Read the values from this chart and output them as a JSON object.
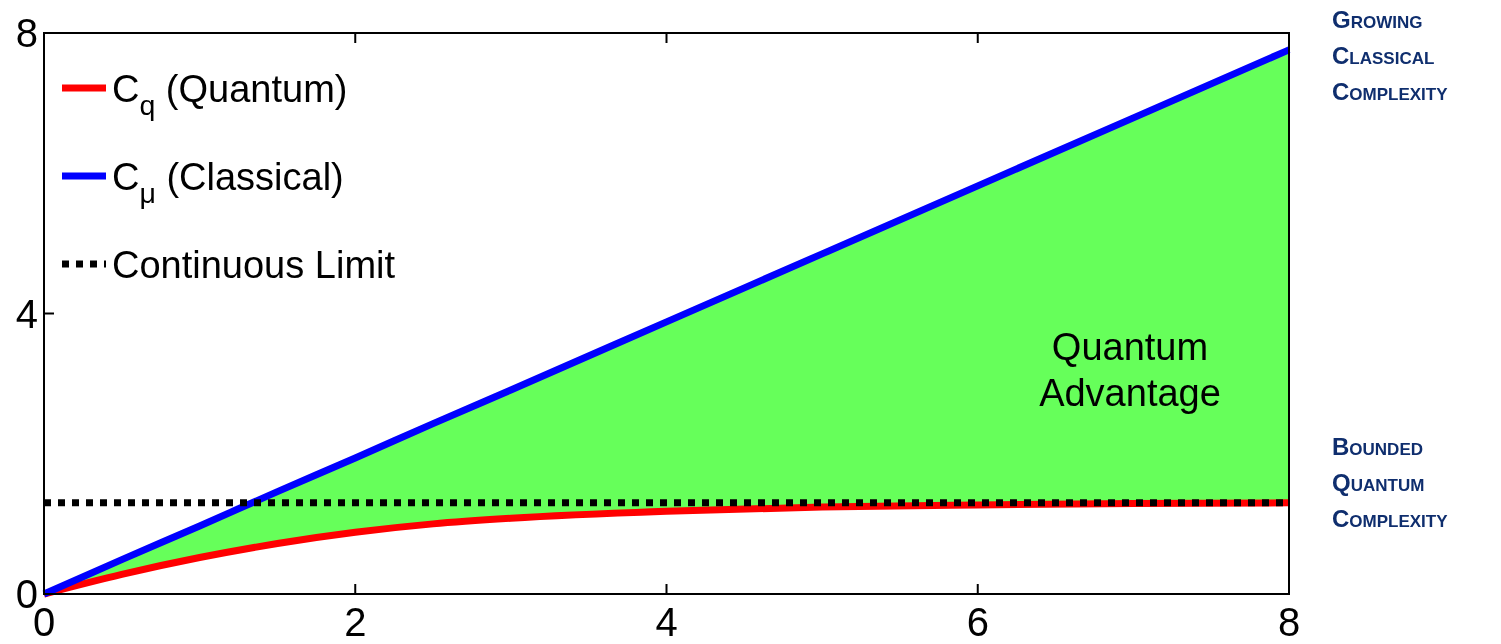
{
  "chart_data": {
    "type": "line",
    "x": [
      0,
      0.5,
      1,
      1.5,
      2,
      2.5,
      3,
      4,
      5,
      6,
      7,
      8
    ],
    "series": [
      {
        "name": "C$_{q}$ (Quantum)",
        "color": "#ff0000",
        "values": [
          0,
          0.28,
          0.52,
          0.72,
          0.88,
          1.0,
          1.08,
          1.18,
          1.24,
          1.27,
          1.29,
          1.3
        ]
      },
      {
        "name": "C$_{μ}$ (Classical)",
        "color": "#0000ff",
        "values": [
          0,
          0.49,
          0.97,
          1.46,
          1.94,
          2.43,
          2.91,
          3.88,
          4.85,
          5.82,
          6.79,
          7.76
        ],
        "lower": [
          0,
          0.28,
          0.52,
          0.72,
          0.88,
          1.0,
          1.08,
          1.18,
          1.24,
          1.27,
          1.29,
          1.3
        ],
        "upper": [
          0,
          0.49,
          0.97,
          1.46,
          1.94,
          2.43,
          2.91,
          3.88,
          4.85,
          5.82,
          6.79,
          7.76
        ]
      },
      {
        "name": "Continuous Limit",
        "color": "#000000",
        "line_style": "dotted",
        "values": [
          1.3,
          1.3,
          1.3,
          1.3,
          1.3,
          1.3,
          1.3,
          1.3,
          1.3,
          1.3,
          1.3,
          1.3
        ]
      }
    ],
    "xlim": [
      0,
      8
    ],
    "ylim": [
      0,
      8
    ],
    "xticks": [
      0,
      2,
      4,
      6,
      8
    ],
    "yticks": [
      0,
      4,
      8
    ],
    "legend": "top left",
    "marker": "none",
    "line_style": "solid",
    "annotations": [
      "Quantum Advantage",
      "Growing Classical Complexity",
      "Bounded Quantum Complexity"
    ]
  }
}
